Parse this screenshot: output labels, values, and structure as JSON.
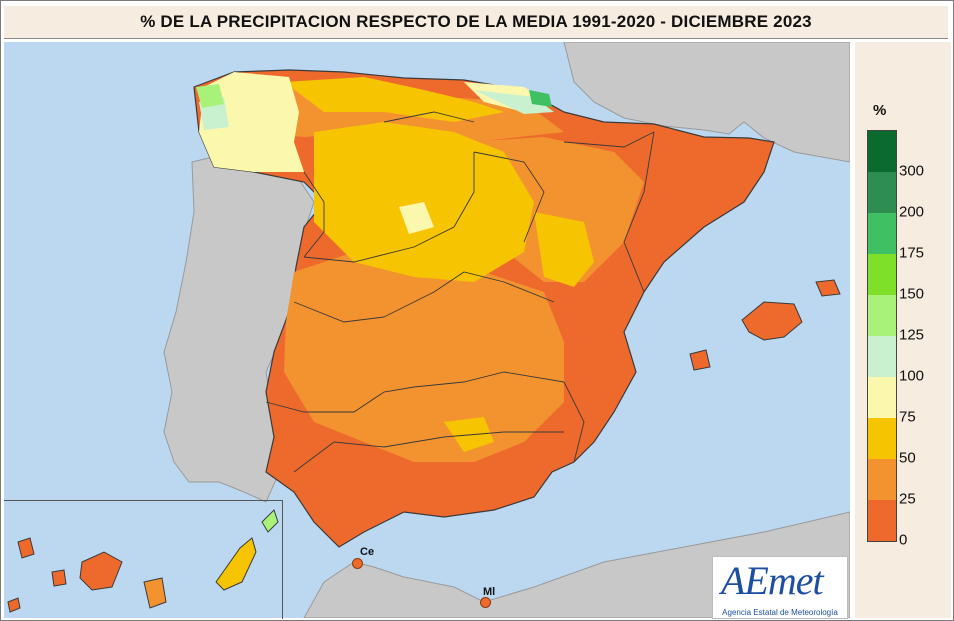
{
  "title": "% DE LA PRECIPITACION RESPECTO DE LA MEDIA 1991-2020 - DICIEMBRE  2023",
  "legend": {
    "unit": "%",
    "classes": [
      {
        "label": "300",
        "color": "#0b6b2e"
      },
      {
        "label": "200",
        "color": "#2e8e52"
      },
      {
        "label": "175",
        "color": "#3ec063"
      },
      {
        "label": "150",
        "color": "#7fe029"
      },
      {
        "label": "125",
        "color": "#a8f27a"
      },
      {
        "label": "100",
        "color": "#c9f1d0"
      },
      {
        "label": "75",
        "color": "#fbf7ad"
      },
      {
        "label": "50",
        "color": "#f6c400"
      },
      {
        "label": "25",
        "color": "#f3932f"
      },
      {
        "label": "0",
        "color": "#ee6a2c"
      }
    ]
  },
  "cities": {
    "ceuta": "Ce",
    "melilla": "Ml"
  },
  "logo": {
    "name": "AEmet",
    "subtitle": "Agencia Estatal de Meteorología"
  },
  "colors": {
    "sea": "#bcd8f1",
    "land_outside": "#c8c8c8",
    "panel_bg": "#f7ece0",
    "border": "#3a3a3a"
  }
}
